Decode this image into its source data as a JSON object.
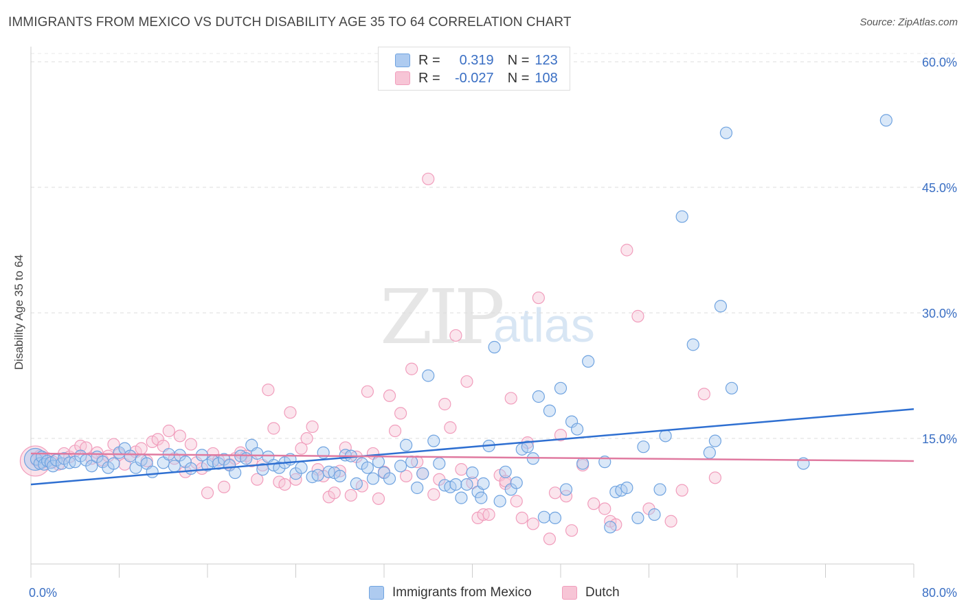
{
  "header": {
    "title": "IMMIGRANTS FROM MEXICO VS DUTCH DISABILITY AGE 35 TO 64 CORRELATION CHART",
    "source": "Source: ZipAtlas.com"
  },
  "watermark": {
    "zip": "ZIP",
    "atlas": "atlas"
  },
  "legend": {
    "r_label": "R =",
    "n_label": "N =",
    "series1": {
      "r": "0.319",
      "n": "123"
    },
    "series2": {
      "r": "-0.027",
      "n": "108"
    }
  },
  "colors": {
    "blue": "#6fa3e0",
    "blue_fill": "#aecbf0",
    "blue_line": "#2e6fd1",
    "pink": "#f19dbc",
    "pink_fill": "#f7c5d6",
    "pink_line": "#e07aa0",
    "axis_text": "#3a6fc4"
  },
  "chart_data": {
    "type": "scatter",
    "title": "IMMIGRANTS FROM MEXICO VS DUTCH DISABILITY AGE 35 TO 64 CORRELATION CHART",
    "xlabel": "",
    "ylabel": "Disability Age 35 to 64",
    "xlim": [
      0,
      80
    ],
    "ylim": [
      0,
      60
    ],
    "x_tick_labels": [
      "0.0%",
      "80.0%"
    ],
    "y_ticks": [
      15,
      30,
      45,
      60
    ],
    "y_tick_labels": [
      "15.0%",
      "30.0%",
      "45.0%",
      "60.0%"
    ],
    "series": [
      {
        "name": "Immigrants from Mexico",
        "color": "#6fa3e0",
        "trend": [
          [
            0,
            9.5
          ],
          [
            80,
            18.5
          ]
        ],
        "points": [
          [
            0.5,
            12.5
          ],
          [
            0.8,
            12.0
          ],
          [
            1.0,
            12.8
          ],
          [
            1.2,
            11.9
          ],
          [
            1.5,
            12.3
          ],
          [
            1.8,
            12.1
          ],
          [
            2.0,
            11.7
          ],
          [
            2.3,
            12.4
          ],
          [
            2.8,
            12.0
          ],
          [
            3.0,
            12.6
          ],
          [
            3.5,
            12.1
          ],
          [
            4.0,
            12.2
          ],
          [
            4.5,
            12.9
          ],
          [
            5.0,
            12.4
          ],
          [
            5.5,
            11.7
          ],
          [
            6.0,
            12.8
          ],
          [
            6.5,
            12.2
          ],
          [
            7.0,
            11.5
          ],
          [
            7.5,
            12.0
          ],
          [
            8.0,
            13.3
          ],
          [
            8.5,
            13.8
          ],
          [
            9.0,
            12.9
          ],
          [
            9.5,
            11.5
          ],
          [
            10.0,
            12.4
          ],
          [
            10.5,
            12.0
          ],
          [
            11.0,
            11.0
          ],
          [
            12.0,
            12.1
          ],
          [
            12.5,
            13.1
          ],
          [
            13.0,
            11.7
          ],
          [
            13.5,
            13.0
          ],
          [
            14.0,
            12.2
          ],
          [
            14.5,
            11.4
          ],
          [
            15.5,
            13.0
          ],
          [
            16.0,
            11.8
          ],
          [
            16.5,
            12.3
          ],
          [
            17.0,
            12.0
          ],
          [
            17.5,
            12.5
          ],
          [
            18.0,
            11.8
          ],
          [
            18.5,
            10.9
          ],
          [
            19.0,
            12.9
          ],
          [
            19.5,
            12.6
          ],
          [
            20.0,
            14.2
          ],
          [
            20.5,
            13.2
          ],
          [
            21.0,
            11.3
          ],
          [
            21.5,
            12.8
          ],
          [
            22.0,
            11.8
          ],
          [
            22.5,
            11.5
          ],
          [
            23.0,
            12.1
          ],
          [
            23.5,
            12.5
          ],
          [
            24.0,
            10.8
          ],
          [
            24.5,
            11.5
          ],
          [
            25.5,
            10.4
          ],
          [
            26.0,
            10.6
          ],
          [
            26.5,
            13.3
          ],
          [
            27.0,
            11.0
          ],
          [
            27.5,
            10.9
          ],
          [
            28.0,
            10.5
          ],
          [
            28.5,
            13.0
          ],
          [
            29.0,
            12.9
          ],
          [
            29.5,
            9.6
          ],
          [
            30.0,
            12.0
          ],
          [
            30.5,
            11.5
          ],
          [
            31.0,
            10.2
          ],
          [
            31.5,
            12.2
          ],
          [
            32.0,
            10.9
          ],
          [
            32.5,
            10.2
          ],
          [
            33.5,
            11.7
          ],
          [
            34.0,
            14.2
          ],
          [
            34.5,
            12.2
          ],
          [
            35.0,
            9.1
          ],
          [
            35.5,
            10.8
          ],
          [
            36.0,
            22.5
          ],
          [
            36.5,
            14.7
          ],
          [
            37.0,
            12.0
          ],
          [
            37.5,
            9.4
          ],
          [
            38.0,
            9.2
          ],
          [
            38.5,
            9.5
          ],
          [
            39.0,
            7.9
          ],
          [
            39.5,
            9.5
          ],
          [
            40.0,
            10.9
          ],
          [
            40.5,
            8.6
          ],
          [
            41.0,
            9.6
          ],
          [
            41.5,
            14.1
          ],
          [
            42.0,
            25.9
          ],
          [
            42.5,
            7.5
          ],
          [
            43.0,
            11.0
          ],
          [
            43.5,
            8.9
          ],
          [
            44.0,
            9.7
          ],
          [
            44.5,
            13.7
          ],
          [
            45.0,
            14.0
          ],
          [
            45.5,
            12.6
          ],
          [
            46.0,
            20.0
          ],
          [
            46.5,
            5.6
          ],
          [
            47.0,
            18.3
          ],
          [
            47.5,
            5.5
          ],
          [
            48.0,
            21.0
          ],
          [
            48.5,
            8.9
          ],
          [
            49.0,
            17.0
          ],
          [
            49.5,
            16.1
          ],
          [
            50.0,
            12.0
          ],
          [
            50.5,
            24.2
          ],
          [
            52.0,
            12.2
          ],
          [
            53.0,
            8.6
          ],
          [
            53.5,
            8.8
          ],
          [
            54.0,
            9.1
          ],
          [
            55.0,
            5.5
          ],
          [
            55.5,
            14.0
          ],
          [
            56.5,
            5.9
          ],
          [
            57.0,
            8.9
          ],
          [
            57.5,
            15.3
          ],
          [
            59.0,
            41.5
          ],
          [
            60.0,
            26.2
          ],
          [
            61.5,
            13.3
          ],
          [
            62.0,
            14.7
          ],
          [
            62.5,
            30.8
          ],
          [
            63.5,
            21.0
          ],
          [
            63.0,
            51.5
          ],
          [
            70.0,
            12.0
          ],
          [
            77.5,
            53.0
          ],
          [
            52.5,
            4.4
          ],
          [
            40.8,
            7.9
          ]
        ]
      },
      {
        "name": "Dutch",
        "color": "#f19dbc",
        "trend": [
          [
            0,
            13.2
          ],
          [
            80,
            12.3
          ]
        ],
        "points": [
          [
            0.5,
            12.4
          ],
          [
            0.8,
            12.9
          ],
          [
            1.0,
            12.1
          ],
          [
            1.5,
            12.6
          ],
          [
            2.0,
            12.2
          ],
          [
            2.5,
            11.9
          ],
          [
            3.0,
            13.2
          ],
          [
            3.5,
            12.8
          ],
          [
            4.0,
            13.5
          ],
          [
            4.5,
            14.1
          ],
          [
            5.0,
            13.9
          ],
          [
            5.5,
            12.6
          ],
          [
            6.0,
            13.3
          ],
          [
            6.5,
            12.4
          ],
          [
            7.0,
            12.9
          ],
          [
            7.5,
            14.3
          ],
          [
            8.0,
            13.1
          ],
          [
            8.5,
            11.9
          ],
          [
            9.0,
            12.9
          ],
          [
            9.5,
            13.4
          ],
          [
            10.0,
            13.8
          ],
          [
            10.5,
            12.3
          ],
          [
            11.0,
            14.6
          ],
          [
            11.5,
            14.9
          ],
          [
            12.0,
            14.1
          ],
          [
            12.5,
            15.9
          ],
          [
            13.0,
            12.6
          ],
          [
            13.5,
            15.3
          ],
          [
            14.0,
            11.0
          ],
          [
            14.5,
            14.3
          ],
          [
            15.0,
            12.1
          ],
          [
            15.5,
            11.4
          ],
          [
            16.0,
            8.5
          ],
          [
            16.5,
            13.2
          ],
          [
            17.0,
            12.4
          ],
          [
            17.5,
            9.2
          ],
          [
            18.0,
            11.9
          ],
          [
            18.5,
            12.6
          ],
          [
            19.0,
            13.3
          ],
          [
            19.5,
            12.9
          ],
          [
            20.0,
            12.3
          ],
          [
            20.5,
            10.1
          ],
          [
            21.0,
            11.8
          ],
          [
            21.5,
            20.8
          ],
          [
            22.0,
            16.2
          ],
          [
            22.5,
            9.8
          ],
          [
            23.0,
            9.5
          ],
          [
            23.5,
            18.1
          ],
          [
            24.0,
            10.1
          ],
          [
            24.5,
            13.8
          ],
          [
            25.0,
            15.0
          ],
          [
            25.5,
            16.4
          ],
          [
            26.0,
            11.3
          ],
          [
            26.5,
            10.5
          ],
          [
            27.0,
            8.0
          ],
          [
            27.5,
            8.5
          ],
          [
            28.0,
            11.1
          ],
          [
            28.5,
            13.9
          ],
          [
            29.0,
            8.2
          ],
          [
            29.5,
            12.8
          ],
          [
            30.0,
            9.3
          ],
          [
            30.5,
            20.6
          ],
          [
            31.0,
            13.2
          ],
          [
            31.5,
            7.8
          ],
          [
            32.0,
            11.0
          ],
          [
            32.5,
            20.1
          ],
          [
            33.0,
            15.9
          ],
          [
            33.5,
            18.0
          ],
          [
            34.0,
            10.5
          ],
          [
            34.5,
            23.3
          ],
          [
            35.0,
            12.2
          ],
          [
            35.5,
            10.8
          ],
          [
            36.0,
            46.0
          ],
          [
            36.5,
            8.3
          ],
          [
            37.0,
            10.1
          ],
          [
            37.5,
            19.1
          ],
          [
            38.0,
            16.3
          ],
          [
            38.5,
            27.3
          ],
          [
            39.0,
            11.3
          ],
          [
            39.5,
            21.8
          ],
          [
            40.0,
            9.7
          ],
          [
            40.5,
            5.5
          ],
          [
            41.0,
            5.9
          ],
          [
            41.5,
            5.9
          ],
          [
            42.5,
            10.6
          ],
          [
            43.0,
            9.6
          ],
          [
            43.5,
            19.8
          ],
          [
            44.0,
            7.5
          ],
          [
            44.5,
            5.5
          ],
          [
            45.0,
            14.5
          ],
          [
            45.5,
            4.8
          ],
          [
            46.0,
            31.8
          ],
          [
            47.0,
            3.0
          ],
          [
            47.5,
            8.5
          ],
          [
            48.0,
            15.4
          ],
          [
            48.5,
            8.1
          ],
          [
            49.0,
            4.0
          ],
          [
            50.0,
            11.8
          ],
          [
            51.0,
            7.2
          ],
          [
            52.0,
            6.6
          ],
          [
            52.5,
            5.1
          ],
          [
            53.0,
            4.7
          ],
          [
            54.0,
            37.5
          ],
          [
            55.0,
            29.6
          ],
          [
            56.0,
            6.6
          ],
          [
            58.0,
            5.1
          ],
          [
            59.0,
            8.8
          ],
          [
            61.0,
            20.3
          ],
          [
            62.0,
            10.3
          ],
          [
            43.0,
            9.9
          ]
        ]
      }
    ]
  },
  "bottom_legend": {
    "item1": "Immigrants from Mexico",
    "item2": "Dutch"
  }
}
